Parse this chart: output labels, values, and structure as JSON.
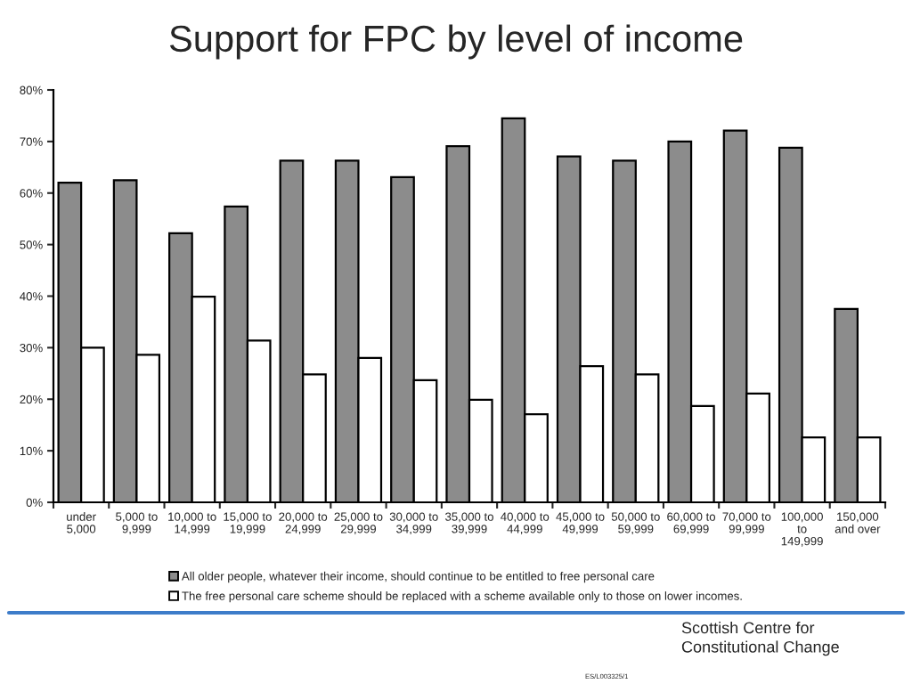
{
  "chart_data": {
    "type": "bar",
    "title": "Support for FPC by level of income",
    "categories": [
      "under\n5,000",
      "5,000 to\n9,999",
      "10,000 to\n14,999",
      "15,000 to\n19,999",
      "20,000 to\n24,999",
      "25,000 to\n29,999",
      "30,000 to\n34,999",
      "35,000 to\n39,999",
      "40,000 to\n44,999",
      "45,000 to\n49,999",
      "50,000 to\n59,999",
      "60,000 to\n69,999",
      "70,000 to\n99,999",
      "100,000\nto\n149,999",
      "150,000\nand over"
    ],
    "series": [
      {
        "name": "All older people, whatever their income, should continue to be entitled to free personal care",
        "color": "#8c8c8c",
        "values": [
          62.0,
          62.5,
          52.2,
          57.4,
          66.3,
          66.3,
          63.1,
          69.1,
          74.5,
          67.1,
          66.3,
          70.0,
          72.1,
          68.8,
          37.5
        ]
      },
      {
        "name": "The free personal care scheme should be replaced with a scheme available only to those on lower incomes.",
        "color": "#ffffff",
        "values": [
          30.0,
          28.6,
          39.9,
          31.4,
          24.8,
          28.0,
          23.7,
          19.9,
          17.1,
          26.4,
          24.8,
          18.7,
          21.1,
          12.6,
          12.6
        ]
      }
    ],
    "ylim": [
      0,
      80
    ],
    "yticks": [
      {
        "value": 0,
        "label": "0%"
      },
      {
        "value": 10,
        "label": "10%"
      },
      {
        "value": 20,
        "label": "20%"
      },
      {
        "value": 30,
        "label": "30%"
      },
      {
        "value": 40,
        "label": "40%"
      },
      {
        "value": 50,
        "label": "50%"
      },
      {
        "value": 60,
        "label": "60%"
      },
      {
        "value": 70,
        "label": "70%"
      },
      {
        "value": 80,
        "label": "80%"
      }
    ],
    "legend": "bottom",
    "annotations": [
      "Scottish Centre for\nConstitutional Change",
      "ES/L003325/1"
    ]
  }
}
